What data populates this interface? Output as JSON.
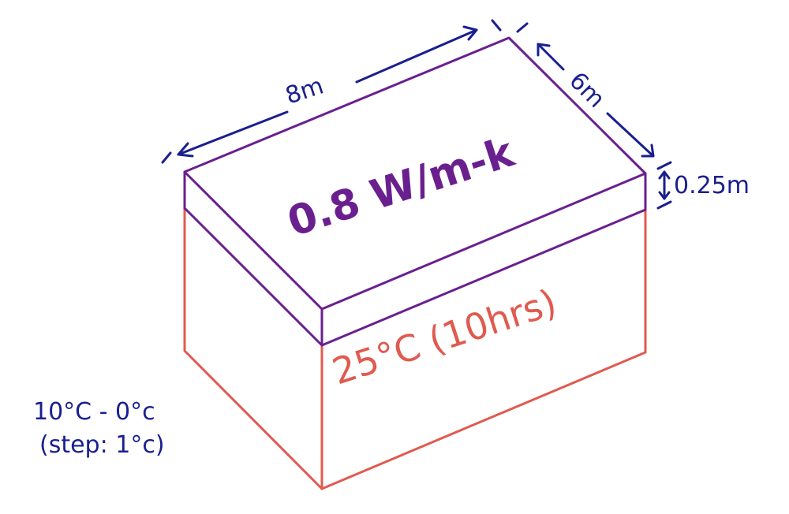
{
  "colors": {
    "slab": "#6a1f8f",
    "box": "#e05a4f",
    "annotation": "#1a1f8f"
  },
  "dimensions": {
    "length": "8m",
    "width": "6m",
    "thickness": "0.25m"
  },
  "slab": {
    "conductivity": "0.8 W/m-k"
  },
  "box": {
    "temperature": "25°C (10hrs)"
  },
  "ambient": {
    "range": "10°C - 0°c",
    "step": "(step: 1°c)"
  }
}
